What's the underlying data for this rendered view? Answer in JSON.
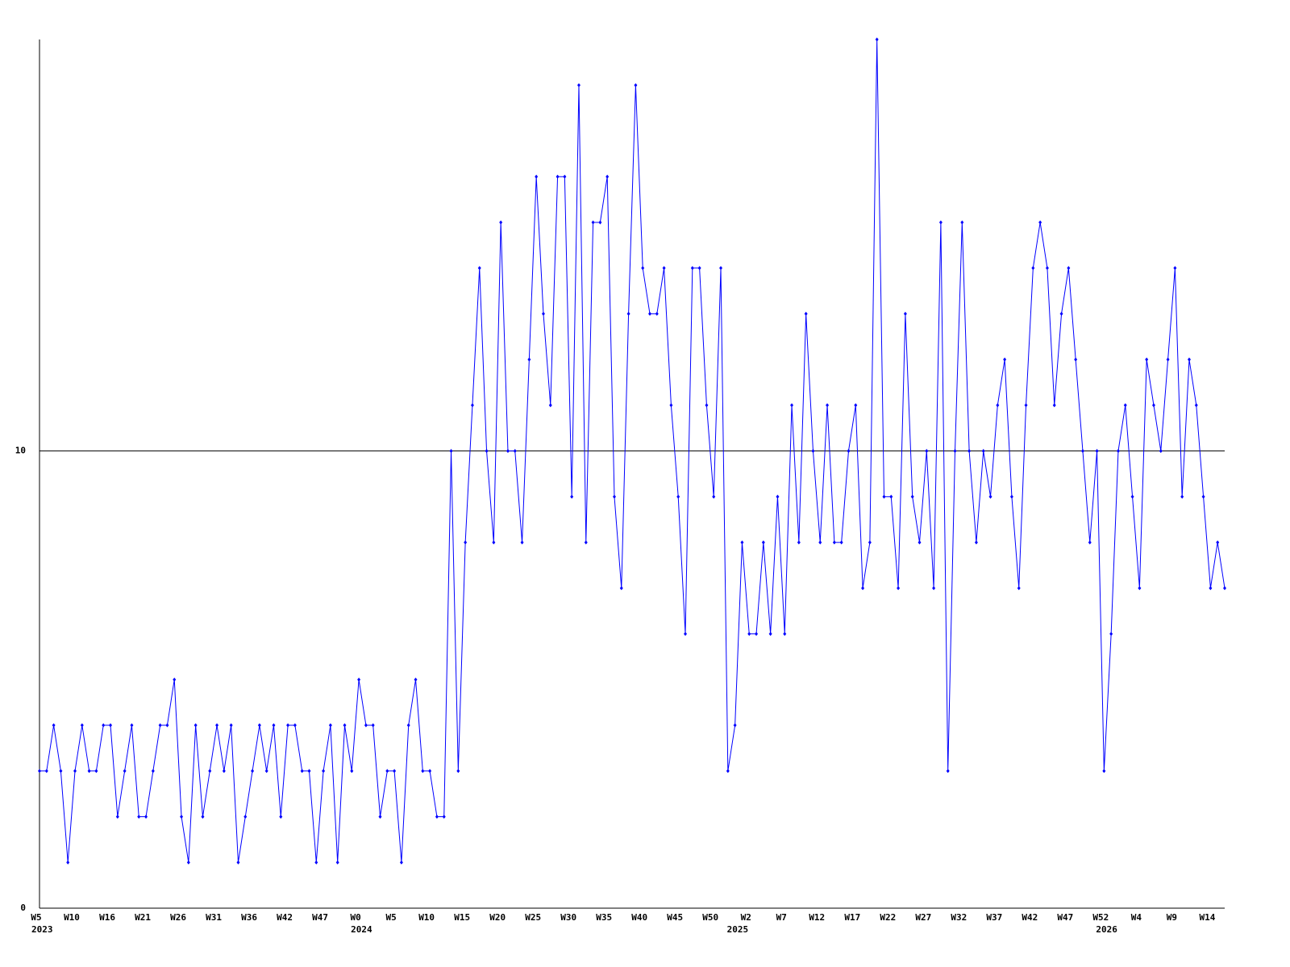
{
  "chart_data": {
    "type": "line",
    "color": "#0000ff",
    "axis_color": "#000000",
    "categories": [
      "W5",
      null,
      null,
      null,
      null,
      "W10",
      null,
      null,
      null,
      null,
      "W16",
      null,
      null,
      null,
      null,
      "W21",
      null,
      null,
      null,
      null,
      "W26",
      null,
      null,
      null,
      null,
      "W31",
      null,
      null,
      null,
      null,
      "W36",
      null,
      null,
      null,
      null,
      "W42",
      null,
      null,
      null,
      null,
      "W47",
      null,
      null,
      null,
      null,
      "W0",
      null,
      null,
      null,
      null,
      "W5",
      null,
      null,
      null,
      null,
      "W10",
      null,
      null,
      null,
      null,
      "W15",
      null,
      null,
      null,
      null,
      "W20",
      null,
      null,
      null,
      null,
      "W25",
      null,
      null,
      null,
      null,
      "W30",
      null,
      null,
      null,
      null,
      "W35",
      null,
      null,
      null,
      null,
      "W40",
      null,
      null,
      null,
      null,
      "W45",
      null,
      null,
      null,
      null,
      "W50",
      null,
      null,
      null,
      null,
      "W2",
      null,
      null,
      null,
      null,
      "W7",
      null,
      null,
      null,
      null,
      "W12",
      null,
      null,
      null,
      null,
      "W17",
      null,
      null,
      null,
      null,
      "W22",
      null,
      null,
      null,
      null,
      "W27",
      null,
      null,
      null,
      null,
      "W32",
      null,
      null,
      null,
      null,
      "W37",
      null,
      null,
      null,
      null,
      "W42",
      null,
      null,
      null,
      null,
      "W47",
      null,
      null,
      null,
      null,
      "W52",
      null,
      null,
      null,
      null,
      "W4",
      null,
      null,
      null,
      null,
      "W9",
      null,
      null,
      null,
      null,
      "W14",
      null,
      null
    ],
    "year_labels": [
      {
        "value": 0,
        "label": "2023"
      },
      {
        "value": 45,
        "label": "2024"
      },
      {
        "value": 98,
        "label": "2025"
      },
      {
        "value": 150,
        "label": "2026"
      }
    ],
    "values": [
      3,
      3,
      4,
      3,
      1,
      3,
      4,
      3,
      3,
      4,
      4,
      2,
      3,
      4,
      2,
      2,
      3,
      4,
      4,
      5,
      2,
      1,
      4,
      2,
      3,
      4,
      3,
      4,
      1,
      2,
      3,
      4,
      3,
      4,
      2,
      4,
      4,
      3,
      3,
      1,
      3,
      4,
      1,
      4,
      3,
      5,
      4,
      4,
      2,
      3,
      3,
      1,
      4,
      5,
      3,
      3,
      2,
      2,
      10,
      3,
      8,
      11,
      14,
      10,
      8,
      15,
      10,
      10,
      8,
      12,
      16,
      13,
      11,
      16,
      16,
      9,
      18,
      8,
      15,
      15,
      16,
      9,
      7,
      13,
      18,
      14,
      13,
      13,
      14,
      11,
      9,
      6,
      14,
      14,
      11,
      9,
      14,
      3,
      4,
      8,
      6,
      6,
      8,
      6,
      9,
      6,
      11,
      8,
      13,
      10,
      8,
      11,
      8,
      8,
      10,
      11,
      7,
      8,
      19,
      9,
      9,
      7,
      13,
      9,
      8,
      10,
      7,
      15,
      3,
      10,
      15,
      10,
      8,
      10,
      9,
      11,
      12,
      9,
      7,
      11,
      14,
      15,
      14,
      11,
      13,
      14,
      12,
      10,
      8,
      10,
      3,
      6,
      10,
      11,
      9,
      7,
      12,
      11,
      10,
      12,
      14,
      9,
      12,
      11,
      9,
      7,
      8,
      7
    ],
    "ylim": [
      0,
      19
    ],
    "yticks": [
      0,
      10
    ],
    "grid": true
  }
}
